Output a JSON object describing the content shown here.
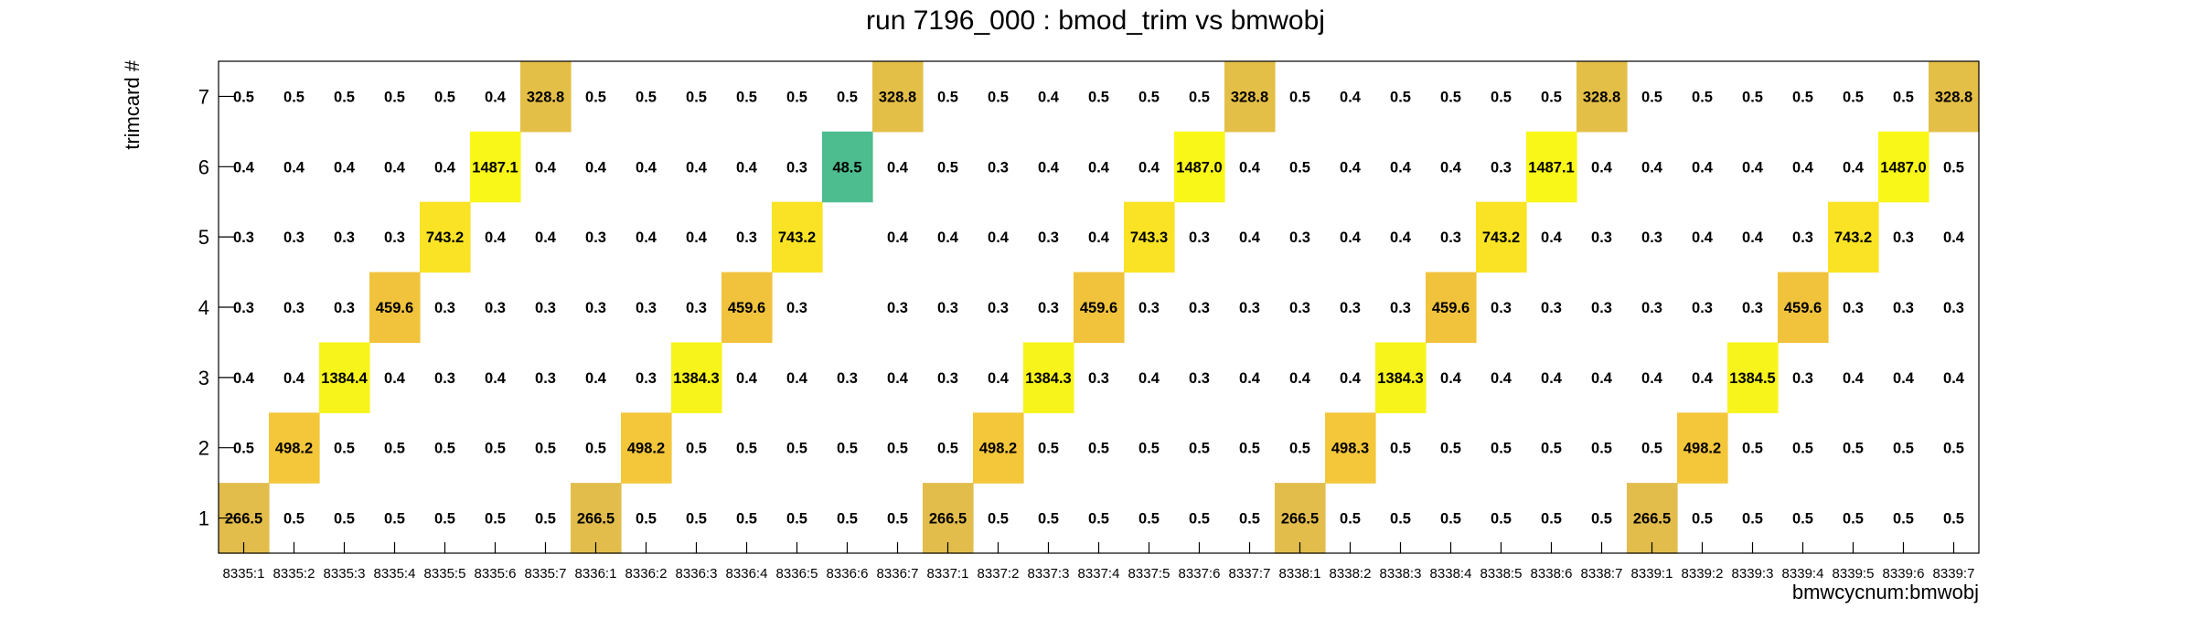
{
  "chart_data": {
    "type": "heatmap",
    "title": "run 7196_000 : bmod_trim vs bmwobj",
    "xlabel": "bmwcycnum:bmwobj",
    "ylabel": "trimcard #",
    "x_categories": [
      "8335:1",
      "8335:2",
      "8335:3",
      "8335:4",
      "8335:5",
      "8335:6",
      "8335:7",
      "8336:1",
      "8336:2",
      "8336:3",
      "8336:4",
      "8336:5",
      "8336:6",
      "8336:7",
      "8337:1",
      "8337:2",
      "8337:3",
      "8337:4",
      "8337:5",
      "8337:6",
      "8337:7",
      "8338:1",
      "8338:2",
      "8338:3",
      "8338:4",
      "8338:5",
      "8338:6",
      "8338:7",
      "8339:1",
      "8339:2",
      "8339:3",
      "8339:4",
      "8339:5",
      "8339:6",
      "8339:7"
    ],
    "y_categories": [
      "1",
      "2",
      "3",
      "4",
      "5",
      "6",
      "7"
    ],
    "rows": [
      {
        "y": "1",
        "values": [
          "266.5",
          "0.5",
          "0.5",
          "0.5",
          "0.5",
          "0.5",
          "0.5",
          "266.5",
          "0.5",
          "0.5",
          "0.5",
          "0.5",
          "0.5",
          "0.5",
          "266.5",
          "0.5",
          "0.5",
          "0.5",
          "0.5",
          "0.5",
          "0.5",
          "266.5",
          "0.5",
          "0.5",
          "0.5",
          "0.5",
          "0.5",
          "0.5",
          "266.5",
          "0.5",
          "0.5",
          "0.5",
          "0.5",
          "0.5",
          "0.5"
        ]
      },
      {
        "y": "2",
        "values": [
          "0.5",
          "498.2",
          "0.5",
          "0.5",
          "0.5",
          "0.5",
          "0.5",
          "0.5",
          "498.2",
          "0.5",
          "0.5",
          "0.5",
          "0.5",
          "0.5",
          "0.5",
          "498.2",
          "0.5",
          "0.5",
          "0.5",
          "0.5",
          "0.5",
          "0.5",
          "498.3",
          "0.5",
          "0.5",
          "0.5",
          "0.5",
          "0.5",
          "0.5",
          "498.2",
          "0.5",
          "0.5",
          "0.5",
          "0.5",
          "0.5"
        ]
      },
      {
        "y": "3",
        "values": [
          "0.4",
          "0.4",
          "1384.4",
          "0.4",
          "0.3",
          "0.4",
          "0.3",
          "0.4",
          "0.3",
          "1384.3",
          "0.4",
          "0.4",
          "0.3",
          "0.4",
          "0.3",
          "0.4",
          "1384.3",
          "0.3",
          "0.4",
          "0.3",
          "0.4",
          "0.4",
          "0.4",
          "1384.3",
          "0.4",
          "0.4",
          "0.4",
          "0.4",
          "0.4",
          "0.4",
          "1384.5",
          "0.3",
          "0.4",
          "0.4",
          "0.4"
        ]
      },
      {
        "y": "4",
        "values": [
          "0.3",
          "0.3",
          "0.3",
          "459.6",
          "0.3",
          "0.3",
          "0.3",
          "0.3",
          "0.3",
          "0.3",
          "459.6",
          "0.3",
          "",
          "0.3",
          "0.3",
          "0.3",
          "0.3",
          "459.6",
          "0.3",
          "0.3",
          "0.3",
          "0.3",
          "0.3",
          "0.3",
          "459.6",
          "0.3",
          "0.3",
          "0.3",
          "0.3",
          "0.3",
          "0.3",
          "459.6",
          "0.3",
          "0.3",
          "0.3"
        ]
      },
      {
        "y": "5",
        "values": [
          "0.3",
          "0.3",
          "0.3",
          "0.3",
          "743.2",
          "0.4",
          "0.4",
          "0.3",
          "0.4",
          "0.4",
          "0.3",
          "743.2",
          "",
          "0.4",
          "0.4",
          "0.4",
          "0.3",
          "0.4",
          "743.3",
          "0.3",
          "0.4",
          "0.3",
          "0.4",
          "0.4",
          "0.3",
          "743.2",
          "0.4",
          "0.3",
          "0.3",
          "0.4",
          "0.4",
          "0.3",
          "743.2",
          "0.3",
          "0.4"
        ]
      },
      {
        "y": "6",
        "values": [
          "0.4",
          "0.4",
          "0.4",
          "0.4",
          "0.4",
          "1487.1",
          "0.4",
          "0.4",
          "0.4",
          "0.4",
          "0.4",
          "0.3",
          "48.5",
          "0.4",
          "0.5",
          "0.3",
          "0.4",
          "0.4",
          "0.4",
          "1487.0",
          "0.4",
          "0.5",
          "0.4",
          "0.4",
          "0.4",
          "0.3",
          "1487.1",
          "0.4",
          "0.4",
          "0.4",
          "0.4",
          "0.4",
          "0.4",
          "1487.0",
          "0.5"
        ]
      },
      {
        "y": "7",
        "values": [
          "0.5",
          "0.5",
          "0.5",
          "0.5",
          "0.5",
          "0.4",
          "328.8",
          "0.5",
          "0.5",
          "0.5",
          "0.5",
          "0.5",
          "0.5",
          "328.8",
          "0.5",
          "0.5",
          "0.4",
          "0.5",
          "0.5",
          "0.5",
          "328.8",
          "0.5",
          "0.4",
          "0.5",
          "0.5",
          "0.5",
          "0.5",
          "328.8",
          "0.5",
          "0.5",
          "0.5",
          "0.5",
          "0.5",
          "0.5",
          "328.8"
        ]
      }
    ],
    "colorscale": [
      {
        "value": 48.5,
        "color": "#4dbd8f"
      },
      {
        "value": 266.5,
        "color": "#e2bd4c"
      },
      {
        "value": 328.8,
        "color": "#e4bf47"
      },
      {
        "value": 459.6,
        "color": "#f1c33d"
      },
      {
        "value": 498.2,
        "color": "#f4c63a"
      },
      {
        "value": 743.2,
        "color": "#fae325"
      },
      {
        "value": 1384.4,
        "color": "#f7f41c"
      },
      {
        "value": 1487.1,
        "color": "#f9f718"
      }
    ],
    "color_threshold": 10,
    "grid": false,
    "legend": "none"
  }
}
